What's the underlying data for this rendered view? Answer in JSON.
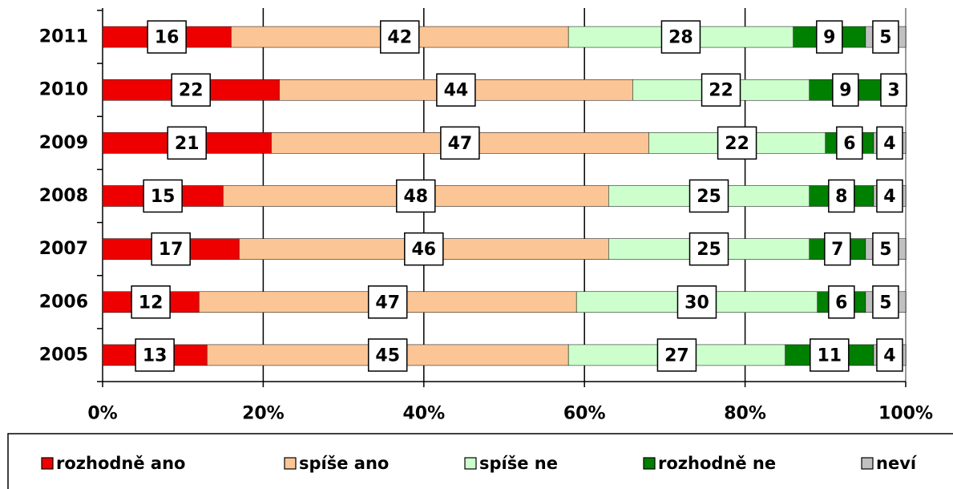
{
  "chart_data": {
    "type": "stacked-bar-horizontal",
    "categories": [
      "2011",
      "2010",
      "2009",
      "2008",
      "2007",
      "2006",
      "2005"
    ],
    "series": [
      {
        "name": "rozhodně ano",
        "color": "#ee0000",
        "values": [
          16,
          22,
          21,
          15,
          17,
          12,
          13
        ]
      },
      {
        "name": "spíše ano",
        "color": "#fcc596",
        "values": [
          42,
          44,
          47,
          48,
          46,
          47,
          45
        ]
      },
      {
        "name": "spíše ne",
        "color": "#ccffcc",
        "values": [
          28,
          22,
          22,
          25,
          25,
          30,
          27
        ]
      },
      {
        "name": "rozhodně ne",
        "color": "#008000",
        "values": [
          9,
          9,
          6,
          8,
          7,
          6,
          11
        ]
      },
      {
        "name": "neví",
        "color": "#c0c0c0",
        "values": [
          5,
          3,
          4,
          4,
          5,
          5,
          4
        ]
      }
    ],
    "xlim": [
      0,
      100
    ],
    "xticks": [
      {
        "value": 0,
        "label": "0%"
      },
      {
        "value": 20,
        "label": "20%"
      },
      {
        "value": 40,
        "label": "40%"
      },
      {
        "value": 60,
        "label": "60%"
      },
      {
        "value": 80,
        "label": "80%"
      },
      {
        "value": 100,
        "label": "100%"
      }
    ],
    "grid": true,
    "legend": "bottom"
  }
}
